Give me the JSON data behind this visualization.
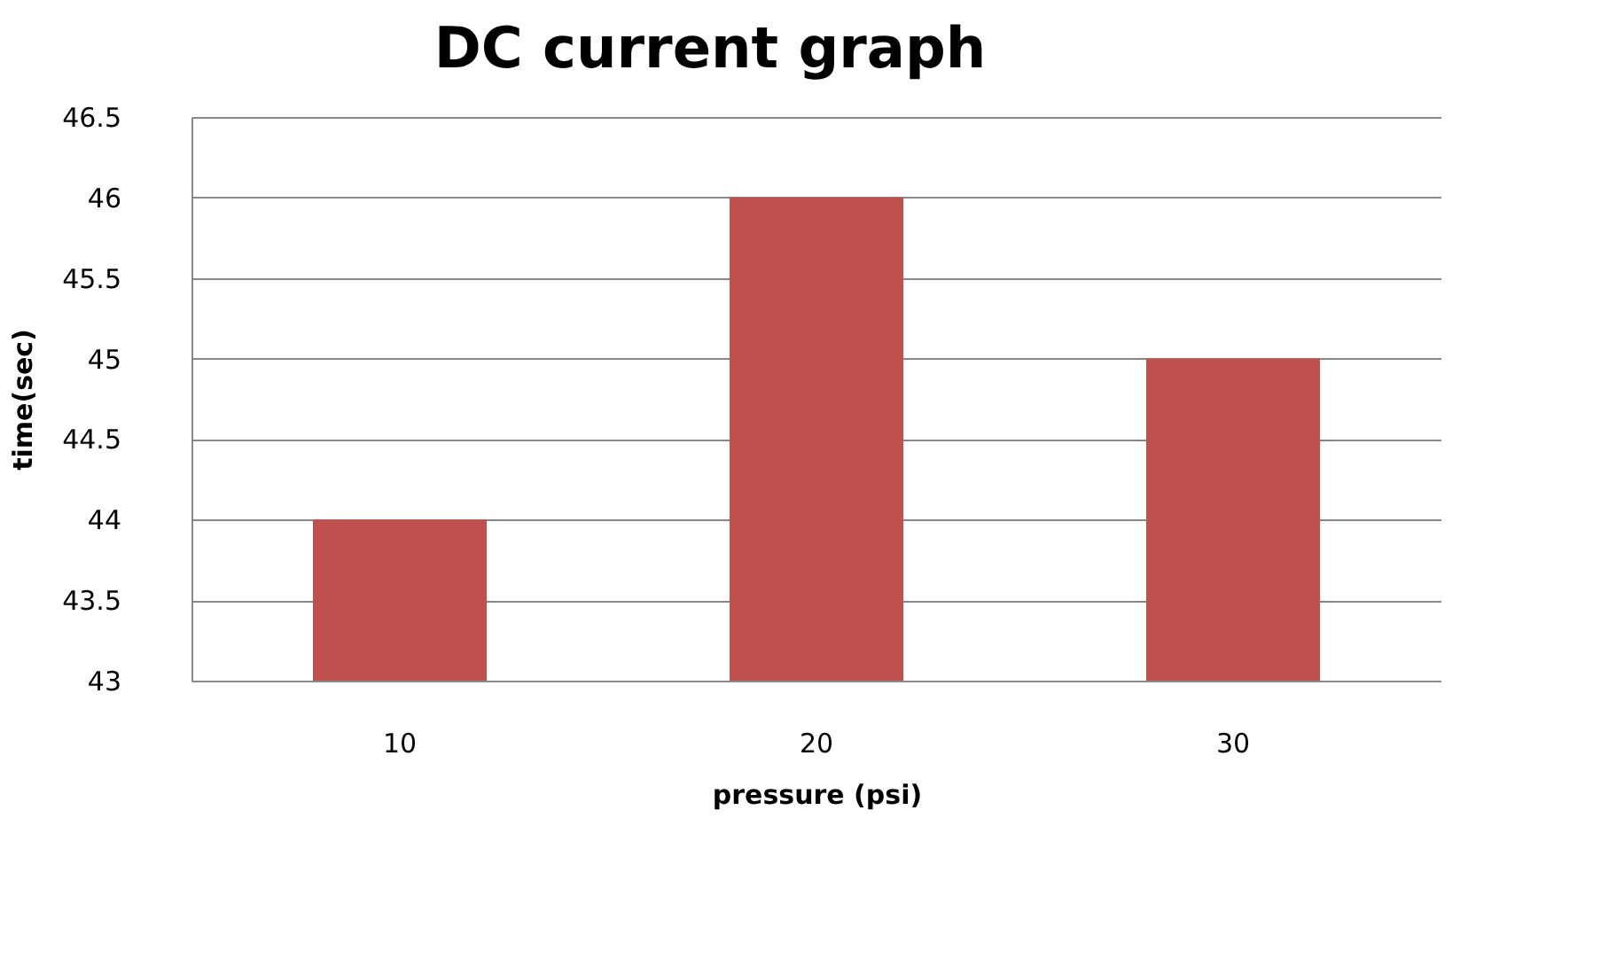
{
  "chart_data": {
    "type": "bar",
    "title": "DC current graph",
    "xlabel": "pressure (psi)",
    "ylabel": "time(sec)",
    "categories": [
      "10",
      "20",
      "30"
    ],
    "values": [
      44,
      46,
      45
    ],
    "color": "#c0504d",
    "ylim": [
      43,
      46.5
    ],
    "yticks": [
      43,
      43.5,
      44,
      44.5,
      45,
      45.5,
      46,
      46.5
    ],
    "grid": "y"
  }
}
